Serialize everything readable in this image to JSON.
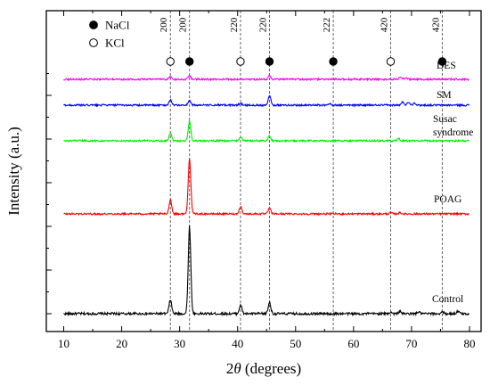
{
  "chart_data": {
    "type": "line",
    "xlabel_prefix": "2",
    "xlabel_symbol": "θ",
    "xlabel_suffix": " (degrees)",
    "ylabel": "Intensity (a.u.)",
    "xlim": [
      7,
      82
    ],
    "x_ticks": [
      "10",
      "20",
      "30",
      "40",
      "50",
      "60",
      "70",
      "80"
    ],
    "legend": [
      {
        "label": "NaCl",
        "marker": "filled-circle"
      },
      {
        "label": "KCl",
        "marker": "open-circle"
      }
    ],
    "reference_lines": [
      {
        "x": 28.4,
        "hkl": "200",
        "phase": "KCl"
      },
      {
        "x": 31.7,
        "hkl": "200",
        "phase": "NaCl"
      },
      {
        "x": 40.5,
        "hkl": "220",
        "phase": "KCl"
      },
      {
        "x": 45.5,
        "hkl": "220",
        "phase": "NaCl"
      },
      {
        "x": 56.5,
        "hkl": "222",
        "phase": "NaCl"
      },
      {
        "x": 66.4,
        "hkl": "420",
        "phase": "KCl"
      },
      {
        "x": 75.3,
        "hkl": "420",
        "phase": "NaCl"
      }
    ],
    "series": [
      {
        "name": "Control",
        "color": "#000000",
        "peaks": [
          [
            28.4,
            0.16
          ],
          [
            31.7,
            1.0
          ],
          [
            40.5,
            0.1
          ],
          [
            45.5,
            0.13
          ],
          [
            66.4,
            0.02
          ],
          [
            68.0,
            0.03
          ],
          [
            71.2,
            0.02
          ],
          [
            75.3,
            0.02
          ],
          [
            78.0,
            0.03
          ]
        ]
      },
      {
        "name": "POAG",
        "color": "#ff0000",
        "peaks": [
          [
            28.4,
            0.23
          ],
          [
            31.7,
            0.9
          ],
          [
            40.5,
            0.12
          ],
          [
            45.5,
            0.09
          ],
          [
            66.4,
            0.02
          ],
          [
            68.0,
            0.02
          ]
        ]
      },
      {
        "name": "Susac syndrome",
        "color": "#00ee00",
        "peaks": [
          [
            28.4,
            0.13
          ],
          [
            31.7,
            0.32
          ],
          [
            40.5,
            0.07
          ],
          [
            45.5,
            0.08
          ],
          [
            67.8,
            0.03
          ]
        ]
      },
      {
        "name": "SM",
        "color": "#0000ff",
        "peaks": [
          [
            28.4,
            0.09
          ],
          [
            31.7,
            0.08
          ],
          [
            40.5,
            0.03
          ],
          [
            45.5,
            0.16
          ],
          [
            56.0,
            0.02
          ],
          [
            68.5,
            0.05
          ],
          [
            69.5,
            0.05
          ],
          [
            70.5,
            0.04
          ]
        ]
      },
      {
        "name": "DES",
        "color": "#ff00ff",
        "peaks": [
          [
            28.4,
            0.04
          ],
          [
            31.7,
            0.06
          ],
          [
            45.5,
            0.06
          ],
          [
            68.0,
            0.03
          ],
          [
            69.0,
            0.02
          ]
        ]
      }
    ],
    "series_labels": [
      {
        "lines": [
          "Control"
        ]
      },
      {
        "lines": [
          "POAG"
        ]
      },
      {
        "lines": [
          "Susac",
          "syndrome"
        ]
      },
      {
        "lines": [
          "SM"
        ]
      },
      {
        "lines": [
          "DES"
        ]
      }
    ],
    "grid": false
  }
}
